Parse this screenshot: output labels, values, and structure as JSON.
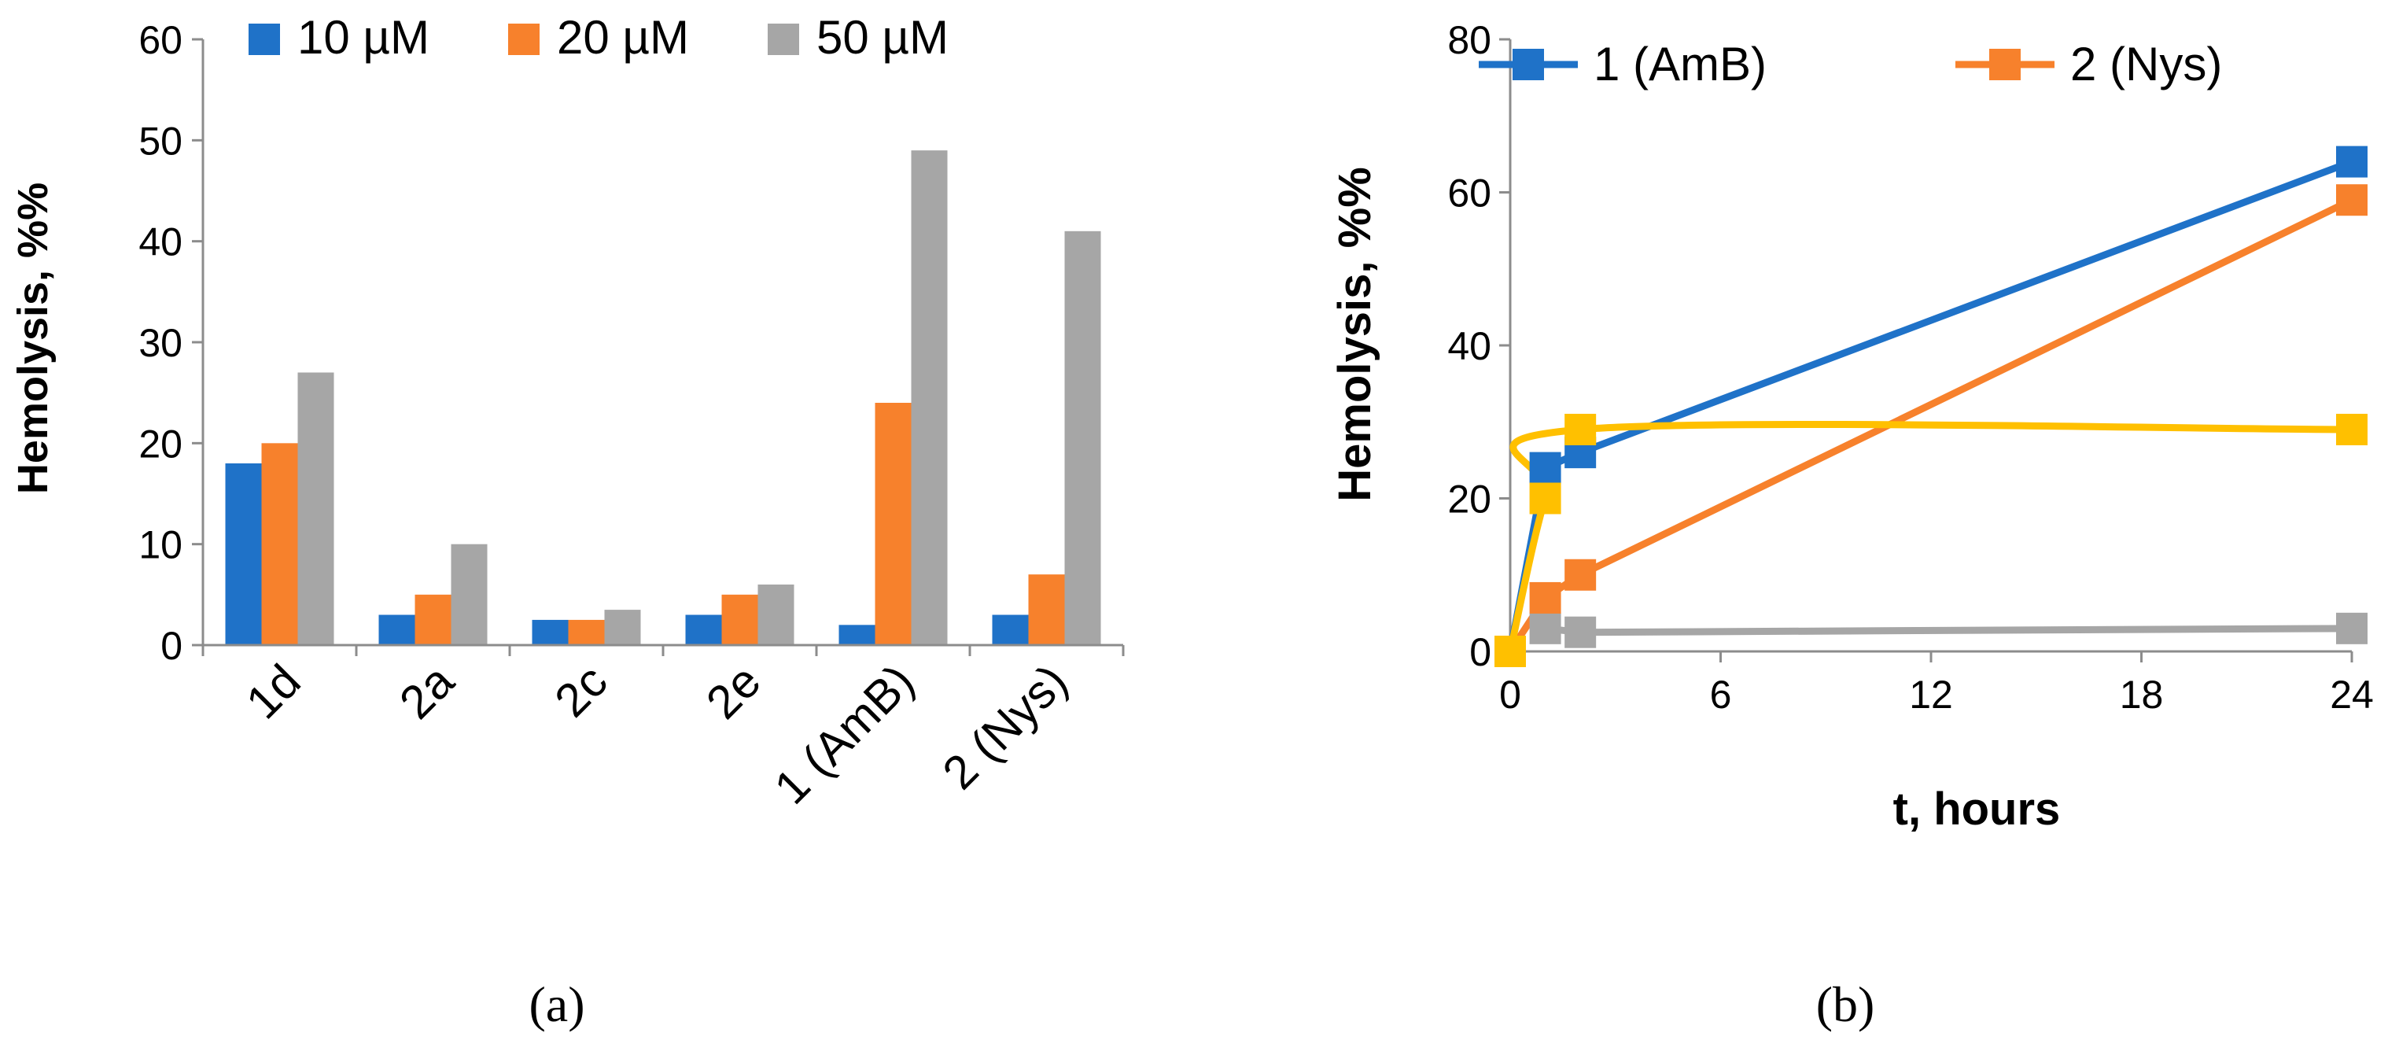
{
  "chart_data": [
    {
      "type": "bar",
      "panel_label": "(a)",
      "ylabel": "Hemolysis, %%",
      "xlabel": "",
      "ylim": [
        0,
        60
      ],
      "yticks": [
        "0",
        "10",
        "20",
        "30",
        "40",
        "50",
        "60"
      ],
      "legend_position": "top",
      "categories": [
        "1d",
        "2a",
        "2c",
        "2e",
        "1 (AmB)",
        "2 (Nys)"
      ],
      "series": [
        {
          "name": "10 µM",
          "color": "#1f72c8",
          "values": [
            18,
            3,
            2.5,
            3,
            2,
            3
          ]
        },
        {
          "name": "20 µM",
          "color": "#f7812c",
          "values": [
            20,
            5,
            2.5,
            5,
            24,
            7
          ]
        },
        {
          "name": "50 µM",
          "color": "#a6a6a6",
          "values": [
            27,
            10,
            3.5,
            6,
            49,
            41
          ]
        }
      ]
    },
    {
      "type": "line",
      "panel_label": "(b)",
      "xlabel": "t, hours",
      "ylabel": "Hemolysis, %%",
      "xlim": [
        0,
        24
      ],
      "ylim": [
        0,
        80
      ],
      "xticks": [
        "0",
        "6",
        "12",
        "18",
        "24"
      ],
      "yticks": [
        "0",
        "20",
        "40",
        "60",
        "80"
      ],
      "legend_position": "top",
      "series": [
        {
          "name": "1 (AmB)",
          "color": "#1f72c8",
          "x": [
            0,
            1,
            2,
            24
          ],
          "y": [
            0,
            24,
            26,
            64
          ],
          "smooth": false
        },
        {
          "name": "2 (Nys)",
          "color": "#f7812c",
          "x": [
            0,
            1,
            2,
            24
          ],
          "y": [
            0,
            7,
            10,
            59
          ],
          "smooth": false
        },
        {
          "name": "",
          "color": "#ffc000",
          "x": [
            0,
            1,
            2,
            24
          ],
          "y": [
            0,
            20,
            29,
            29
          ],
          "smooth": true
        },
        {
          "name": "",
          "color": "#a6a6a6",
          "x": [
            1,
            2,
            24
          ],
          "y": [
            3,
            2.5,
            3
          ],
          "smooth": false
        }
      ]
    }
  ]
}
